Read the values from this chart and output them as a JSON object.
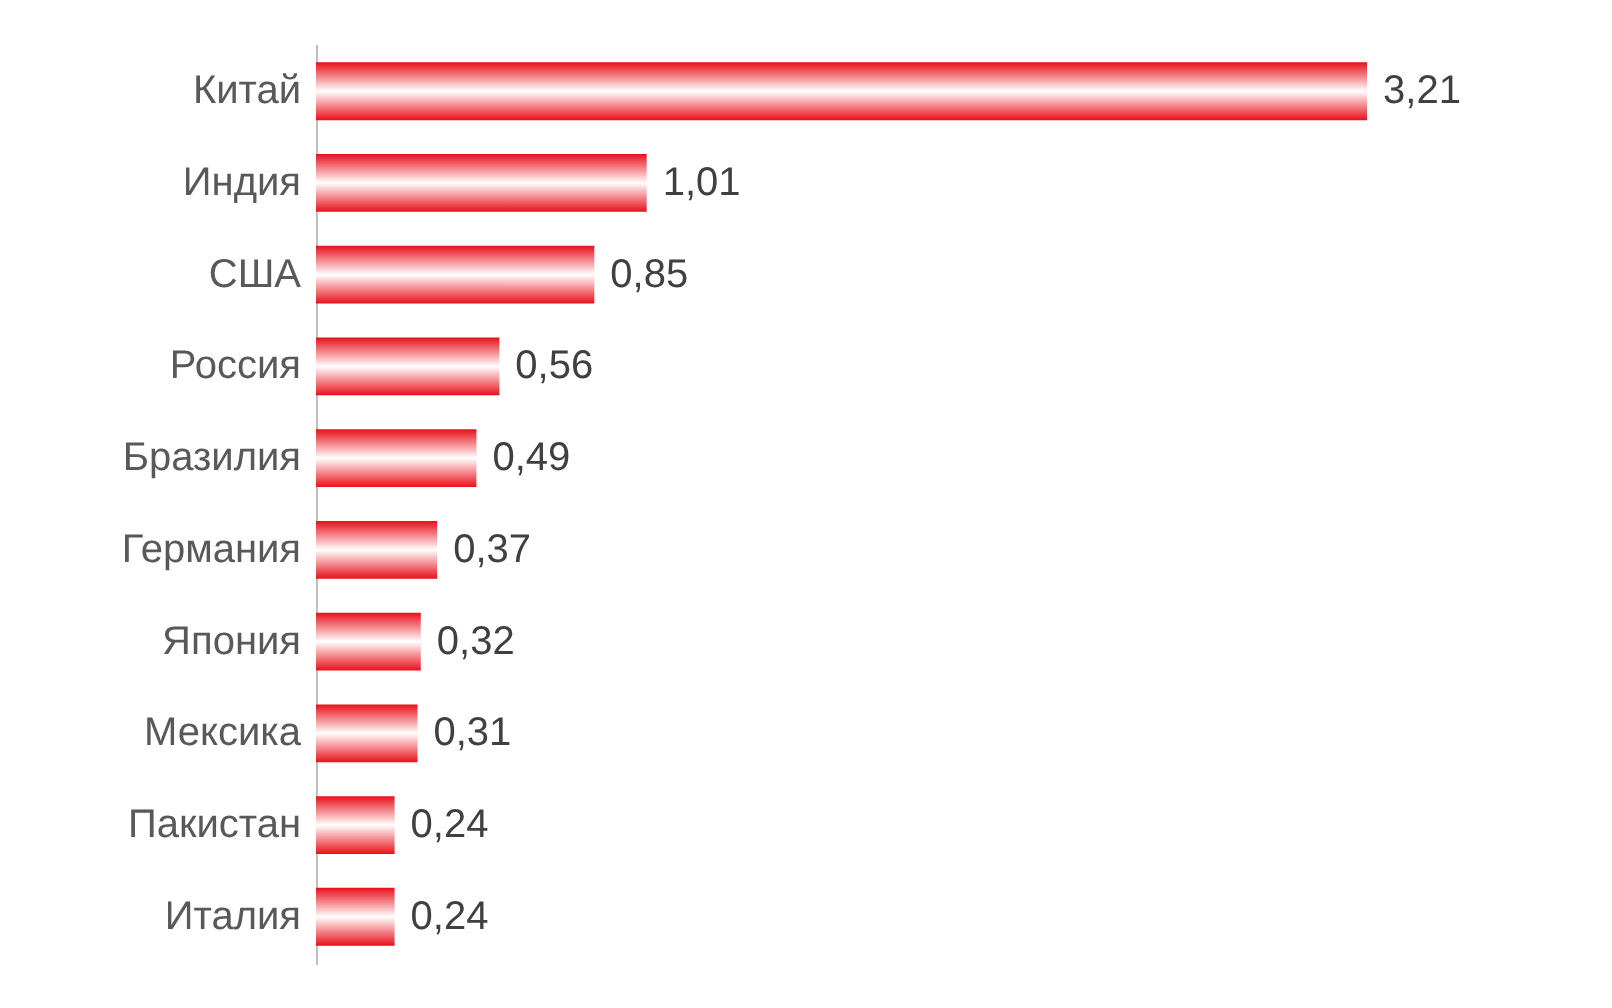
{
  "chart_data": {
    "type": "bar",
    "orientation": "horizontal",
    "categories": [
      "Китай",
      "Индия",
      "США",
      "Россия",
      "Бразилия",
      "Германия",
      "Япония",
      "Мексика",
      "Пакистан",
      "Италия"
    ],
    "values": [
      3.21,
      1.01,
      0.85,
      0.56,
      0.49,
      0.37,
      0.32,
      0.31,
      0.24,
      0.24
    ],
    "value_labels": [
      "3,21",
      "1,01",
      "0,85",
      "0,56",
      "0,49",
      "0,37",
      "0,32",
      "0,31",
      "0,24",
      "0,24"
    ],
    "color": "#e8101a"
  }
}
